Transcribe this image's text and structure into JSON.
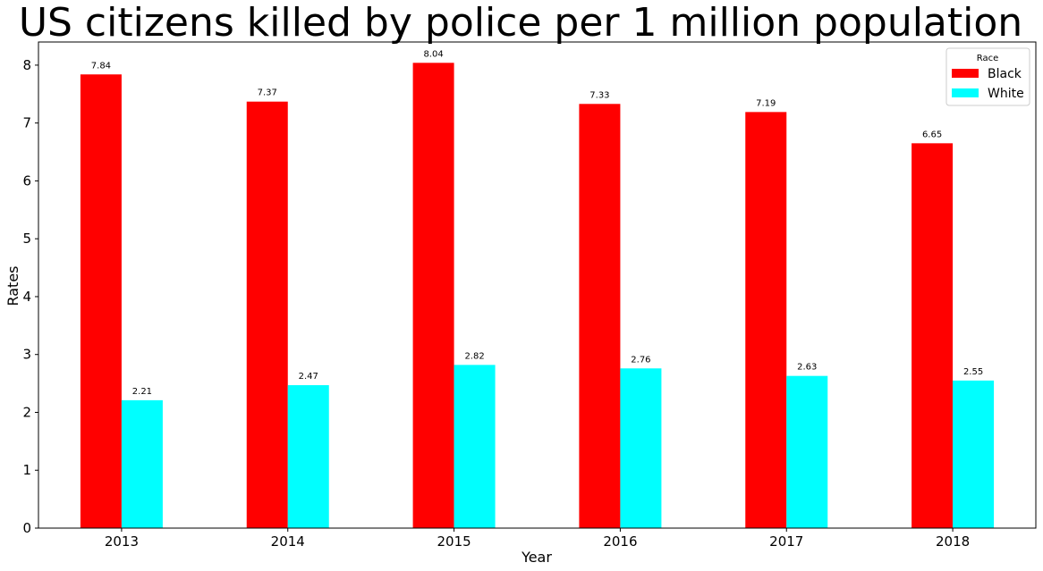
{
  "chart_data": {
    "type": "bar",
    "title": "US citizens killed by police per 1 million population",
    "xlabel": "Year",
    "ylabel": "Rates",
    "categories": [
      "2013",
      "2014",
      "2015",
      "2016",
      "2017",
      "2018"
    ],
    "series": [
      {
        "name": "Black",
        "color": "#ff0000",
        "values": [
          7.84,
          7.37,
          8.04,
          7.33,
          7.19,
          6.65
        ],
        "labels": [
          "7.84",
          "7.37",
          "8.04",
          "7.33",
          "7.19",
          "6.65"
        ]
      },
      {
        "name": "White",
        "color": "#00ffff",
        "values": [
          2.21,
          2.47,
          2.82,
          2.76,
          2.63,
          2.55
        ],
        "labels": [
          "2.21",
          "2.47",
          "2.82",
          "2.76",
          "2.63",
          "2.55"
        ]
      }
    ],
    "ylim": [
      0,
      8.4
    ],
    "yticks": [
      0,
      1,
      2,
      3,
      4,
      5,
      6,
      7,
      8
    ],
    "ytick_labels": [
      "0",
      "1",
      "2",
      "3",
      "4",
      "5",
      "6",
      "7",
      "8"
    ],
    "grid": false,
    "legend": {
      "title": "Race",
      "position": "top-right"
    }
  }
}
